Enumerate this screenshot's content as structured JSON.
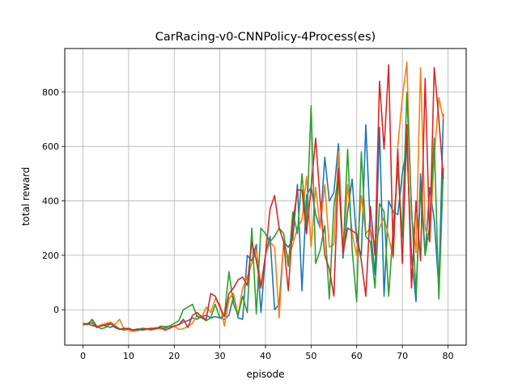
{
  "chart_data": {
    "type": "line",
    "title": "CarRacing-v0-CNNPolicy-4Process(es)",
    "xlabel": "episode",
    "ylabel": "total reward",
    "xlim": [
      -4,
      84
    ],
    "ylim": [
      -130,
      960
    ],
    "xticks": [
      0,
      10,
      20,
      30,
      40,
      50,
      60,
      70,
      80
    ],
    "yticks": [
      0,
      200,
      400,
      600,
      800
    ],
    "grid": true,
    "legend": false,
    "colors": [
      "#1f77b4",
      "#ff7f0e",
      "#2ca02c",
      "#d62728"
    ],
    "x": [
      0,
      1,
      2,
      3,
      4,
      5,
      6,
      7,
      8,
      9,
      10,
      11,
      12,
      13,
      14,
      15,
      16,
      17,
      18,
      19,
      20,
      21,
      22,
      23,
      24,
      25,
      26,
      27,
      28,
      29,
      30,
      31,
      32,
      33,
      34,
      35,
      36,
      37,
      38,
      39,
      40,
      41,
      42,
      43,
      44,
      45,
      46,
      47,
      48,
      49,
      50,
      51,
      52,
      53,
      54,
      55,
      56,
      57,
      58,
      59,
      60,
      61,
      62,
      63,
      64,
      65,
      66,
      67,
      68,
      69,
      70,
      71,
      72,
      73,
      74,
      75,
      76,
      77,
      78,
      79
    ],
    "series": [
      {
        "values": [
          -55,
          -52,
          -58,
          -62,
          -55,
          -60,
          -65,
          -58,
          -70,
          -72,
          -68,
          -74,
          -70,
          -75,
          -72,
          -70,
          -65,
          -70,
          -68,
          -62,
          -60,
          -55,
          -45,
          -40,
          -30,
          -35,
          -25,
          -20,
          -30,
          -25,
          -30,
          -35,
          -20,
          50,
          -30,
          -35,
          200,
          180,
          240,
          -10,
          200,
          270,
          0,
          20,
          250,
          230,
          260,
          460,
          70,
          420,
          450,
          350,
          300,
          560,
          400,
          430,
          610,
          190,
          360,
          480,
          250,
          200,
          680,
          300,
          130,
          670,
          50,
          400,
          360,
          350,
          500,
          600,
          200,
          30,
          500,
          200,
          450,
          330,
          80,
          720
        ]
      },
      {
        "values": [
          -58,
          -50,
          -40,
          -65,
          -55,
          -50,
          -45,
          -55,
          -35,
          -70,
          -75,
          -80,
          -75,
          -70,
          -72,
          -75,
          -65,
          -70,
          -62,
          -65,
          -60,
          -72,
          -70,
          -60,
          -50,
          -20,
          -30,
          10,
          -10,
          40,
          20,
          -60,
          40,
          60,
          -20,
          80,
          120,
          170,
          220,
          90,
          200,
          250,
          230,
          -30,
          250,
          190,
          240,
          300,
          330,
          490,
          230,
          450,
          300,
          460,
          230,
          240,
          580,
          200,
          460,
          280,
          200,
          420,
          280,
          300,
          240,
          300,
          340,
          270,
          190,
          600,
          780,
          910,
          350,
          210,
          890,
          300,
          250,
          560,
          780,
          700
        ]
      },
      {
        "values": [
          -52,
          -55,
          -35,
          -60,
          -70,
          -65,
          -50,
          -60,
          -70,
          -75,
          -70,
          -75,
          -72,
          -68,
          -70,
          -74,
          -70,
          -60,
          -62,
          -60,
          -50,
          -40,
          0,
          10,
          20,
          -25,
          -30,
          -40,
          -30,
          20,
          -30,
          -20,
          140,
          20,
          -20,
          50,
          -10,
          300,
          -15,
          300,
          280,
          250,
          270,
          300,
          280,
          160,
          360,
          280,
          500,
          300,
          750,
          170,
          220,
          310,
          40,
          380,
          490,
          200,
          590,
          220,
          30,
          580,
          270,
          250,
          80,
          390,
          360,
          50,
          300,
          520,
          270,
          800,
          380,
          60,
          440,
          200,
          310,
          630,
          40,
          520
        ]
      },
      {
        "values": [
          -50,
          -52,
          -48,
          -65,
          -60,
          -55,
          -50,
          -65,
          -72,
          -68,
          -70,
          -74,
          -75,
          -72,
          -70,
          -68,
          -70,
          -65,
          -75,
          -68,
          -60,
          -55,
          -35,
          -65,
          -20,
          -10,
          -25,
          -35,
          60,
          50,
          10,
          -25,
          60,
          80,
          110,
          120,
          90,
          250,
          180,
          80,
          200,
          370,
          420,
          300,
          250,
          70,
          320,
          440,
          440,
          280,
          450,
          630,
          400,
          200,
          150,
          50,
          520,
          210,
          300,
          290,
          280,
          180,
          50,
          380,
          200,
          840,
          590,
          900,
          200,
          590,
          170,
          680,
          80,
          400,
          180,
          850,
          250,
          890,
          700,
          480
        ]
      }
    ]
  }
}
